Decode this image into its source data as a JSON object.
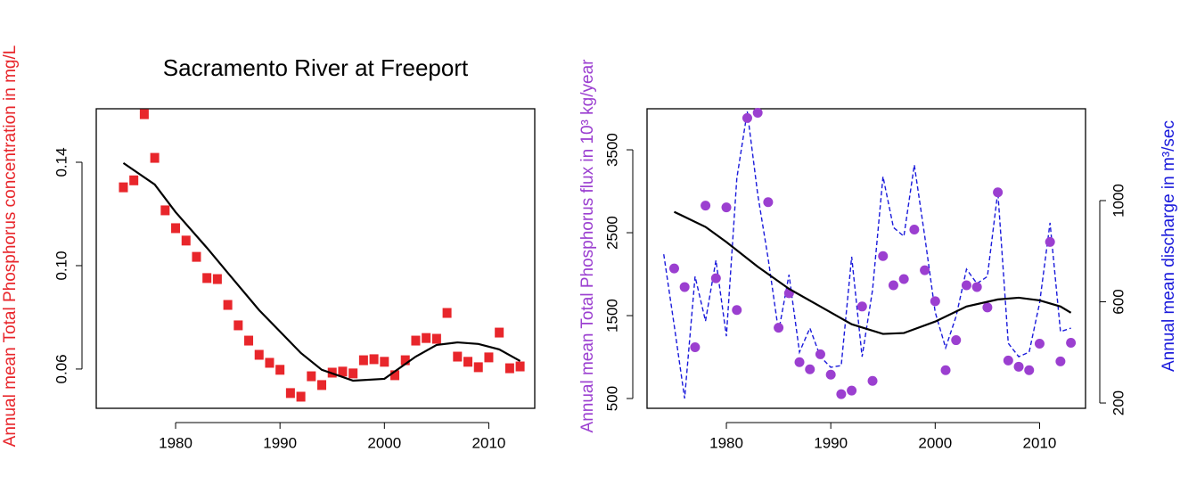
{
  "chart_data": [
    {
      "type": "scatter",
      "title": "Sacramento River at Freeport",
      "ylabel": "Annual mean Total Phosphorus concentration in mg/L",
      "ylabel_color": "#e8262b",
      "xlim": [
        1972.4,
        2014.4
      ],
      "xticks": [
        1980,
        1990,
        2000,
        2010
      ],
      "ylim": [
        0.0448,
        0.1607
      ],
      "yticks": [
        0.06,
        {
          "value": 0.1,
          "label": "0.10"
        },
        0.14
      ],
      "series": [
        {
          "color": "#e8262b",
          "marker": "square",
          "x": [
            1975,
            1976,
            1977,
            1978,
            1979,
            1980,
            1981,
            1982,
            1983,
            1984,
            1985,
            1986,
            1987,
            1988,
            1989,
            1990,
            1991,
            1992,
            1993,
            1994,
            1995,
            1996,
            1997,
            1998,
            1999,
            2000,
            2001,
            2002,
            2003,
            2004,
            2005,
            2006,
            2007,
            2008,
            2009,
            2010,
            2011,
            2012,
            2013
          ],
          "values": [
            0.1303,
            0.133,
            0.1586,
            0.1417,
            0.1214,
            0.1145,
            0.1097,
            0.1034,
            0.0952,
            0.0948,
            0.0848,
            0.0769,
            0.071,
            0.0655,
            0.0624,
            0.0597,
            0.0507,
            0.0493,
            0.0572,
            0.0538,
            0.0586,
            0.059,
            0.0583,
            0.0634,
            0.0638,
            0.0628,
            0.0576,
            0.0634,
            0.071,
            0.072,
            0.0717,
            0.0817,
            0.0648,
            0.0628,
            0.0607,
            0.0645,
            0.0741,
            0.0603,
            0.061
          ]
        },
        {
          "color": "#000000",
          "marker": "line",
          "x": [
            1975,
            1978,
            1980,
            1983,
            1985,
            1988,
            1990,
            1992,
            1994,
            1997,
            2000,
            2003,
            2005,
            2007,
            2009,
            2011,
            2013
          ],
          "values": [
            0.1397,
            0.1314,
            0.1207,
            0.1069,
            0.0972,
            0.0828,
            0.0745,
            0.0662,
            0.0597,
            0.0555,
            0.0562,
            0.0648,
            0.0693,
            0.0703,
            0.0697,
            0.0676,
            0.0631
          ]
        }
      ]
    },
    {
      "type": "scatter",
      "ylabel": "Annual mean Total Phosphorus flux in 10³ kg/year",
      "ylabel_color": "#9b3fd0",
      "y2label": "Annual mean discharge in m³/sec",
      "y2label_color": "#1a1adb",
      "xlim": [
        1972.4,
        2014.4
      ],
      "xticks": [
        1980,
        1990,
        2000,
        2010
      ],
      "ylim": [
        382,
        3995
      ],
      "yticks": [
        500,
        1500,
        2500,
        3500
      ],
      "y2lim": [
        179,
        1363
      ],
      "y2ticks": [
        200,
        600,
        1000
      ],
      "series": [
        {
          "color": "#1a1adb",
          "marker": "dashed",
          "axis": "y2",
          "x": [
            1974,
            1975,
            1976,
            1977,
            1978,
            1979,
            1980,
            1981,
            1982,
            1983,
            1984,
            1985,
            1986,
            1987,
            1988,
            1989,
            1990,
            1991,
            1992,
            1993,
            1994,
            1995,
            1996,
            1997,
            1998,
            1999,
            2000,
            2001,
            2002,
            2003,
            2004,
            2005,
            2006,
            2007,
            2008,
            2009,
            2010,
            2011,
            2012,
            2013
          ],
          "values": [
            788,
            507,
            218,
            700,
            524,
            764,
            464,
            1088,
            1352,
            1025,
            771,
            482,
            707,
            401,
            496,
            383,
            341,
            348,
            778,
            383,
            647,
            1095,
            894,
            859,
            1141,
            859,
            559,
            418,
            542,
            729,
            672,
            700,
            1035,
            436,
            383,
            401,
            595,
            912,
            482,
            496
          ]
        },
        {
          "color": "#9b3fd0",
          "marker": "circle",
          "x": [
            1975,
            1976,
            1977,
            1978,
            1979,
            1980,
            1981,
            1982,
            1983,
            1984,
            1985,
            1986,
            1987,
            1988,
            1989,
            1990,
            1991,
            1992,
            1993,
            1994,
            1995,
            1996,
            1997,
            1998,
            1999,
            2000,
            2001,
            2002,
            2003,
            2004,
            2005,
            2006,
            2007,
            2008,
            2009,
            2010,
            2011,
            2012,
            2013
          ],
          "values": [
            2069,
            1845,
            1119,
            2827,
            1951,
            2805,
            1567,
            3883,
            3947,
            2869,
            1354,
            1770,
            938,
            852,
            1034,
            788,
            553,
            596,
            1610,
            713,
            2218,
            1866,
            1941,
            2538,
            2047,
            1674,
            842,
            1204,
            1866,
            1845,
            1599,
            2987,
            959,
            884,
            842,
            1162,
            2389,
            948,
            1172
          ]
        },
        {
          "color": "#000000",
          "marker": "line",
          "x": [
            1975,
            1978,
            1980,
            1983,
            1986,
            1989,
            1992,
            1995,
            1997,
            2000,
            2003,
            2006,
            2008,
            2010,
            2012,
            2013
          ],
          "values": [
            2752,
            2570,
            2388,
            2090,
            1823,
            1610,
            1396,
            1279,
            1290,
            1428,
            1610,
            1695,
            1716,
            1684,
            1610,
            1535
          ]
        }
      ]
    }
  ]
}
